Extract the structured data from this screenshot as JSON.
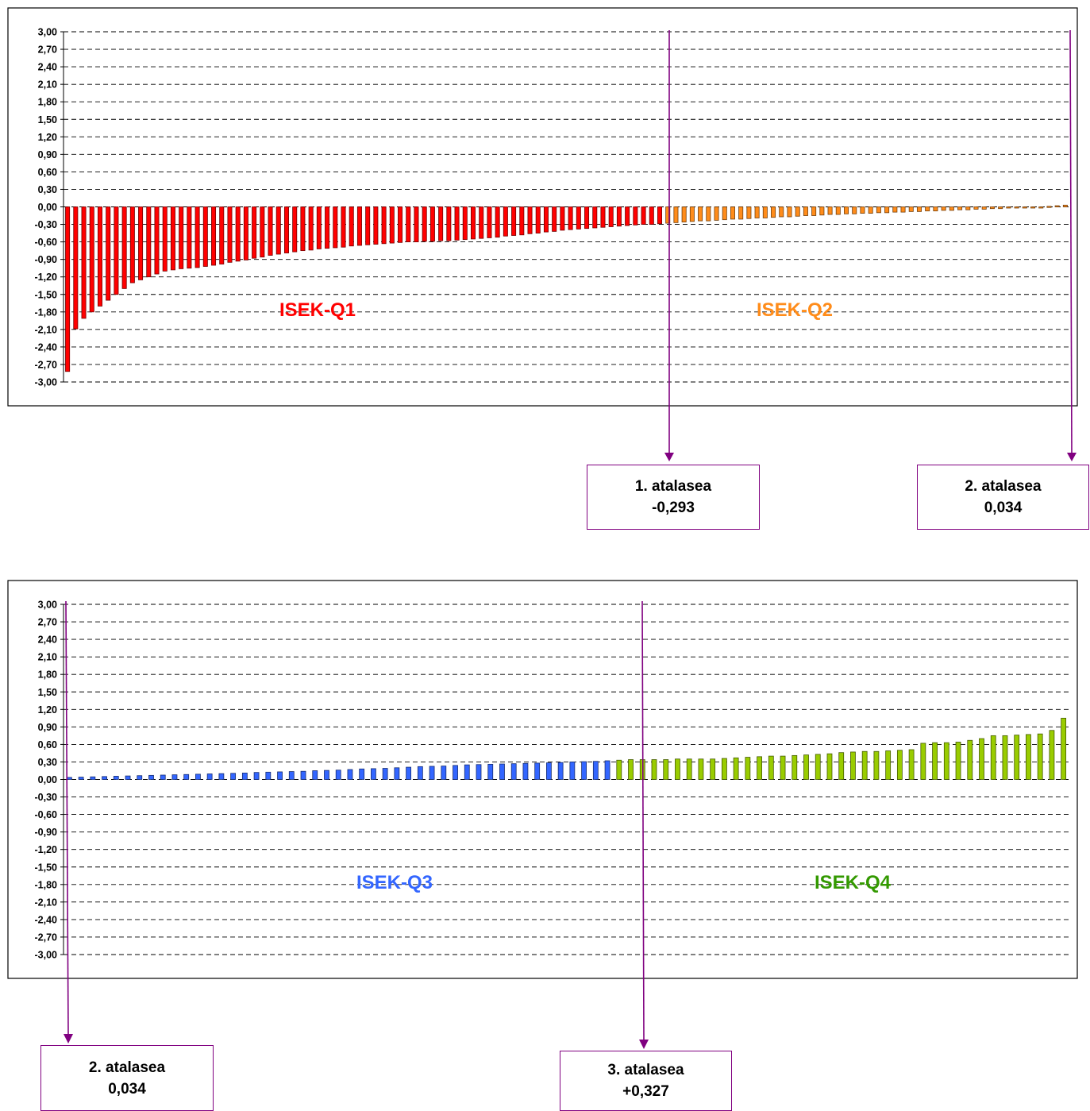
{
  "chart_data": [
    {
      "type": "bar",
      "title": "",
      "xlabel": "",
      "ylabel": "",
      "ylim": [
        -3.0,
        3.0
      ],
      "yticks": [
        "3,00",
        "2,70",
        "2,40",
        "2,10",
        "1,80",
        "1,50",
        "1,20",
        "0,90",
        "0,60",
        "0,30",
        "0,00",
        "-0,30",
        "-0,60",
        "-0,90",
        "-1,20",
        "-1,50",
        "-1,80",
        "-2,10",
        "-2,40",
        "-2,70",
        "-3,00"
      ],
      "grid": true,
      "series": [
        {
          "name": "ISEK-Q1",
          "color": "#ff0000",
          "values": [
            -2.82,
            -2.09,
            -1.91,
            -1.8,
            -1.7,
            -1.6,
            -1.5,
            -1.4,
            -1.3,
            -1.25,
            -1.2,
            -1.15,
            -1.1,
            -1.08,
            -1.06,
            -1.05,
            -1.04,
            -1.02,
            -1.0,
            -0.98,
            -0.95,
            -0.93,
            -0.91,
            -0.88,
            -0.86,
            -0.83,
            -0.81,
            -0.79,
            -0.77,
            -0.75,
            -0.74,
            -0.72,
            -0.71,
            -0.7,
            -0.69,
            -0.67,
            -0.66,
            -0.65,
            -0.64,
            -0.63,
            -0.62,
            -0.61,
            -0.6,
            -0.6,
            -0.59,
            -0.59,
            -0.58,
            -0.58,
            -0.57,
            -0.56,
            -0.55,
            -0.54,
            -0.53,
            -0.52,
            -0.5,
            -0.49,
            -0.48,
            -0.46,
            -0.45,
            -0.43,
            -0.42,
            -0.4,
            -0.39,
            -0.38,
            -0.37,
            -0.36,
            -0.35,
            -0.34,
            -0.33,
            -0.32,
            -0.31,
            -0.3,
            -0.3,
            -0.29
          ]
        },
        {
          "name": "ISEK-Q2",
          "color": "#ff8c1a",
          "values": [
            -0.28,
            -0.27,
            -0.26,
            -0.25,
            -0.24,
            -0.24,
            -0.23,
            -0.22,
            -0.21,
            -0.21,
            -0.2,
            -0.19,
            -0.19,
            -0.18,
            -0.17,
            -0.17,
            -0.16,
            -0.15,
            -0.15,
            -0.14,
            -0.13,
            -0.13,
            -0.12,
            -0.12,
            -0.11,
            -0.11,
            -0.1,
            -0.1,
            -0.09,
            -0.09,
            -0.08,
            -0.08,
            -0.07,
            -0.07,
            -0.06,
            -0.06,
            -0.05,
            -0.05,
            -0.04,
            -0.04,
            -0.03,
            -0.03,
            -0.02,
            -0.02,
            -0.01,
            -0.01,
            0.0,
            0.01,
            0.02,
            0.03
          ]
        }
      ],
      "annotations": {
        "q1_label": "ISEK-Q1",
        "q2_label": "ISEK-Q2"
      }
    },
    {
      "type": "bar",
      "title": "",
      "xlabel": "",
      "ylabel": "",
      "ylim": [
        -3.0,
        3.0
      ],
      "yticks": [
        "3,00",
        "2,70",
        "2,40",
        "2,10",
        "1,80",
        "1,50",
        "1,20",
        "0,90",
        "0,60",
        "0,30",
        "0,00",
        "-0,30",
        "-0,60",
        "-0,90",
        "-1,20",
        "-1,50",
        "-1,80",
        "-2,10",
        "-2,40",
        "-2,70",
        "-3,00"
      ],
      "grid": true,
      "series": [
        {
          "name": "ISEK-Q3",
          "color": "#3366ff",
          "values": [
            0.035,
            0.04,
            0.045,
            0.05,
            0.055,
            0.06,
            0.065,
            0.07,
            0.075,
            0.08,
            0.085,
            0.09,
            0.095,
            0.1,
            0.105,
            0.11,
            0.12,
            0.125,
            0.13,
            0.135,
            0.14,
            0.15,
            0.155,
            0.16,
            0.17,
            0.18,
            0.185,
            0.19,
            0.2,
            0.21,
            0.22,
            0.225,
            0.23,
            0.24,
            0.25,
            0.255,
            0.26,
            0.265,
            0.27,
            0.275,
            0.28,
            0.285,
            0.29,
            0.3,
            0.305,
            0.31,
            0.32
          ]
        },
        {
          "name": "ISEK-Q4",
          "color": "#99cc00",
          "values": [
            0.33,
            0.34,
            0.34,
            0.34,
            0.34,
            0.35,
            0.35,
            0.35,
            0.35,
            0.36,
            0.37,
            0.38,
            0.39,
            0.4,
            0.4,
            0.41,
            0.42,
            0.43,
            0.44,
            0.46,
            0.47,
            0.48,
            0.48,
            0.49,
            0.5,
            0.51,
            0.62,
            0.63,
            0.63,
            0.64,
            0.67,
            0.7,
            0.75,
            0.75,
            0.76,
            0.77,
            0.78,
            0.84,
            1.05
          ]
        }
      ],
      "annotations": {
        "q3_label": "ISEK-Q3",
        "q4_label": "ISEK-Q4"
      }
    }
  ],
  "colors": {
    "arrow": "#800080",
    "q1": "#ff0000",
    "q2": "#ff8c1a",
    "q3": "#3366ff",
    "q4": "#99cc00",
    "q3_label": "#3366ff",
    "q4_label": "#339900"
  },
  "callouts": {
    "threshold1": {
      "title": "1. atalasea",
      "value": "-0,293"
    },
    "threshold2_top": {
      "title": "2. atalasea",
      "value": "0,034"
    },
    "threshold2_bottom": {
      "title": "2. atalasea",
      "value": "0,034"
    },
    "threshold3": {
      "title": "3. atalasea",
      "value": "+0,327"
    }
  }
}
